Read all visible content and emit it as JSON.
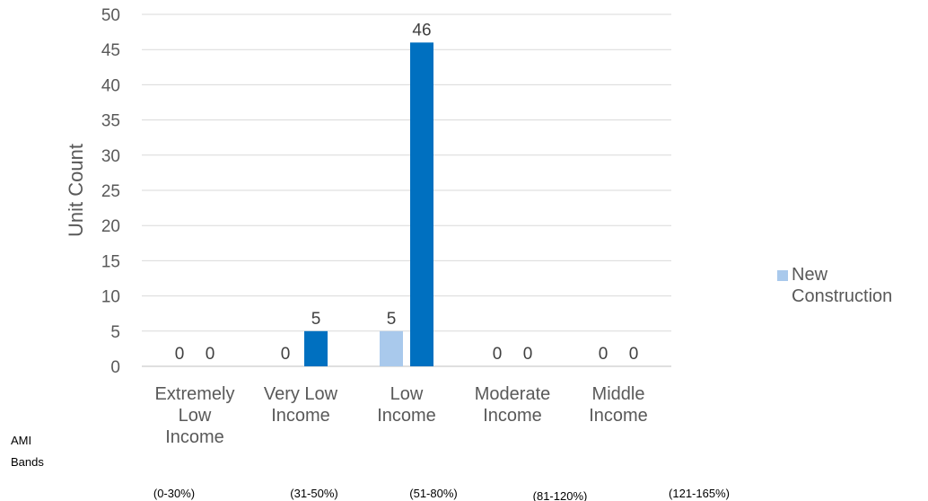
{
  "chart_data": {
    "type": "bar",
    "ylabel": "Unit Count",
    "ylim": [
      0,
      50
    ],
    "y_ticks": [
      0,
      5,
      10,
      15,
      20,
      25,
      30,
      35,
      40,
      45,
      50
    ],
    "grid": true,
    "categories": [
      [
        "Extremely",
        "Low",
        "Income"
      ],
      [
        "Very Low",
        "Income"
      ],
      [
        "Low",
        "Income"
      ],
      [
        "Moderate",
        "Income"
      ],
      [
        "Middle",
        "Income"
      ]
    ],
    "ami_ranges": [
      "(0-30%)",
      "(31-50%)",
      "(51-80%)",
      "(81-120%)",
      "(121-165%)"
    ],
    "ami_bands_label": [
      "AMI",
      "Bands"
    ],
    "legend": {
      "position": "right",
      "entries": [
        [
          "New",
          "Construction"
        ]
      ]
    },
    "series": [
      {
        "name": "New Construction",
        "color": "#a9c9ec",
        "values": [
          0,
          0,
          5,
          0,
          0
        ]
      },
      {
        "color": "#0070c0",
        "values": [
          0,
          5,
          46,
          0,
          0
        ]
      }
    ]
  }
}
